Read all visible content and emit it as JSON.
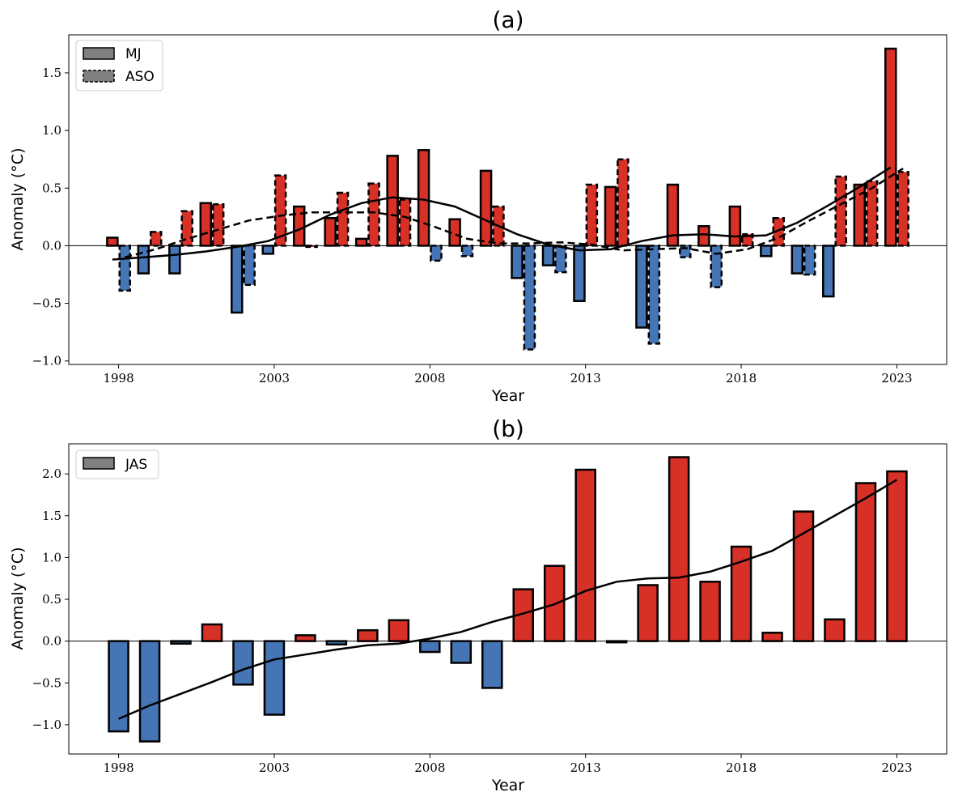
{
  "colors": {
    "positive": "#d73027",
    "negative": "#4575b4",
    "edge": "#000000",
    "legend_fill": "#808080"
  },
  "chart_data": [
    {
      "id": "a",
      "type": "bar",
      "title": "(a)",
      "xlabel": "Year",
      "ylabel": "Anomaly (°C)",
      "x": [
        1998,
        1999,
        2000,
        2001,
        2002,
        2003,
        2004,
        2005,
        2006,
        2007,
        2008,
        2009,
        2010,
        2011,
        2012,
        2013,
        2014,
        2015,
        2016,
        2017,
        2018,
        2019,
        2020,
        2021,
        2022,
        2023
      ],
      "xlim": [
        1996.4,
        2024.6
      ],
      "ylim": [
        -1.03,
        1.83
      ],
      "xticks": [
        1998,
        2003,
        2008,
        2013,
        2018,
        2023
      ],
      "xtick_labels": [
        "1998",
        "2003",
        "2008",
        "2013",
        "2018",
        "2023"
      ],
      "yticks": [
        -1.0,
        -0.5,
        0.0,
        0.5,
        1.0,
        1.5
      ],
      "ytick_labels": [
        "−1.0",
        "−0.5",
        "0.0",
        "0.5",
        "1.0",
        "1.5"
      ],
      "legend_position": "upper-left",
      "series": [
        {
          "name": "MJ",
          "style": "solid",
          "values": [
            0.07,
            -0.24,
            -0.24,
            0.37,
            -0.58,
            -0.07,
            0.34,
            0.24,
            0.06,
            0.78,
            0.83,
            0.23,
            0.65,
            -0.28,
            -0.17,
            -0.48,
            0.51,
            -0.71,
            0.53,
            0.17,
            0.34,
            -0.09,
            -0.24,
            -0.44,
            0.53,
            1.71
          ],
          "trend": [
            -0.12,
            -0.1,
            -0.08,
            -0.05,
            -0.01,
            0.04,
            0.14,
            0.27,
            0.37,
            0.42,
            0.4,
            0.34,
            0.22,
            0.1,
            0.01,
            -0.04,
            -0.03,
            0.04,
            0.09,
            0.1,
            0.08,
            0.09,
            0.2,
            0.35,
            0.51,
            0.68
          ]
        },
        {
          "name": "ASO",
          "style": "dashed",
          "values": [
            -0.39,
            0.12,
            0.3,
            0.36,
            -0.34,
            0.61,
            0.0,
            0.46,
            0.54,
            0.4,
            -0.13,
            -0.09,
            0.34,
            -0.9,
            -0.23,
            0.53,
            0.75,
            -0.85,
            -0.1,
            -0.36,
            0.1,
            0.24,
            -0.25,
            0.6,
            0.56,
            0.64
          ],
          "trend": [
            -0.1,
            -0.03,
            0.06,
            0.14,
            0.22,
            0.26,
            0.29,
            0.29,
            0.29,
            0.25,
            0.16,
            0.06,
            0.02,
            0.02,
            0.03,
            0.01,
            -0.04,
            -0.03,
            -0.02,
            -0.07,
            -0.03,
            0.07,
            0.22,
            0.36,
            0.5,
            0.67
          ]
        }
      ]
    },
    {
      "id": "b",
      "type": "bar",
      "title": "(b)",
      "xlabel": "Year",
      "ylabel": "Anomaly (°C)",
      "x": [
        1998,
        1999,
        2000,
        2001,
        2002,
        2003,
        2004,
        2005,
        2006,
        2007,
        2008,
        2009,
        2010,
        2011,
        2012,
        2013,
        2014,
        2015,
        2016,
        2017,
        2018,
        2019,
        2020,
        2021,
        2022,
        2023
      ],
      "xlim": [
        1996.4,
        2024.6
      ],
      "ylim": [
        -1.35,
        2.36
      ],
      "xticks": [
        1998,
        2003,
        2008,
        2013,
        2018,
        2023
      ],
      "xtick_labels": [
        "1998",
        "2003",
        "2008",
        "2013",
        "2018",
        "2023"
      ],
      "yticks": [
        -1.0,
        -0.5,
        0.0,
        0.5,
        1.0,
        1.5,
        2.0
      ],
      "ytick_labels": [
        "−1.0",
        "−0.5",
        "0.0",
        "0.5",
        "1.0",
        "1.5",
        "2.0"
      ],
      "legend_position": "upper-left",
      "series": [
        {
          "name": "JAS",
          "style": "solid",
          "values": [
            -1.08,
            -1.2,
            -0.03,
            0.2,
            -0.52,
            -0.88,
            0.07,
            -0.04,
            0.13,
            0.25,
            -0.13,
            -0.26,
            -0.56,
            0.62,
            0.9,
            2.05,
            -0.01,
            0.67,
            2.2,
            0.71,
            1.13,
            0.1,
            1.55,
            0.26,
            1.89,
            2.03
          ],
          "trend": [
            -0.93,
            -0.77,
            -0.63,
            -0.49,
            -0.34,
            -0.22,
            -0.16,
            -0.1,
            -0.05,
            -0.03,
            0.03,
            0.11,
            0.23,
            0.33,
            0.44,
            0.6,
            0.71,
            0.75,
            0.76,
            0.83,
            0.95,
            1.08,
            1.29,
            1.5,
            1.71,
            1.93
          ]
        }
      ]
    }
  ]
}
